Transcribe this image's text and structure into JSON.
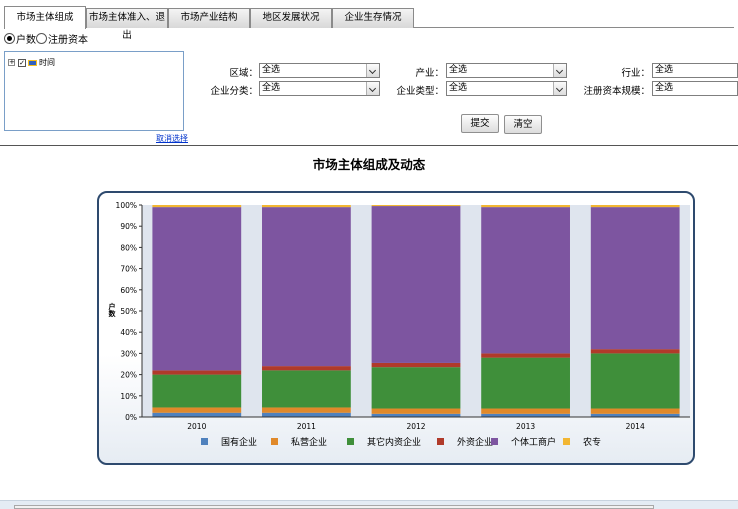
{
  "tabs": [
    "市场主体组成",
    "市场主体准入、退出",
    "市场产业结构",
    "地区发展状况",
    "企业生存情况"
  ],
  "radio": [
    "户数",
    "注册资本"
  ],
  "tree": {
    "label": "时间"
  },
  "cancel_select": "取消选择",
  "filters": {
    "region": {
      "label": "区域：",
      "value": "全选"
    },
    "industry": {
      "label": "产业：",
      "value": "全选"
    },
    "sector": {
      "label": "行业：",
      "value": "全选"
    },
    "category": {
      "label": "企业分类：",
      "value": "全选"
    },
    "type": {
      "label": "企业类型：",
      "value": "全选"
    },
    "capital": {
      "label": "注册资本规模：",
      "value": "全选"
    }
  },
  "buttons": {
    "submit": "提交",
    "clear": "清空"
  },
  "chart_data": {
    "type": "bar",
    "stacked": "percent",
    "title": "市场主体组成及动态",
    "ylabel": "户数",
    "xlabel": "",
    "ylim": [
      0,
      100
    ],
    "yticks": [
      "0%",
      "10%",
      "20%",
      "30%",
      "40%",
      "50%",
      "60%",
      "70%",
      "80%",
      "90%",
      "100%"
    ],
    "categories": [
      "2010",
      "2011",
      "2012",
      "2013",
      "2014"
    ],
    "grid": false,
    "legend_position": "bottom",
    "series": [
      {
        "name": "国有企业",
        "color": "#4f81bd",
        "values": [
          2,
          2,
          1.5,
          1.5,
          1.5
        ]
      },
      {
        "name": "私营企业",
        "color": "#e0892a",
        "values": [
          2.5,
          2.5,
          2.5,
          2.5,
          2.5
        ]
      },
      {
        "name": "其它内资企业",
        "color": "#3f8f3a",
        "values": [
          15.5,
          17.5,
          19.5,
          24,
          26
        ]
      },
      {
        "name": "外资企业",
        "color": "#b03a2a",
        "values": [
          2,
          2,
          2,
          2,
          2
        ]
      },
      {
        "name": "个体工商户",
        "color": "#7d55a0",
        "values": [
          77,
          75,
          74,
          69,
          67
        ]
      },
      {
        "name": "农专",
        "color": "#f2b632",
        "values": [
          1,
          1,
          0.5,
          1,
          1
        ]
      }
    ]
  }
}
